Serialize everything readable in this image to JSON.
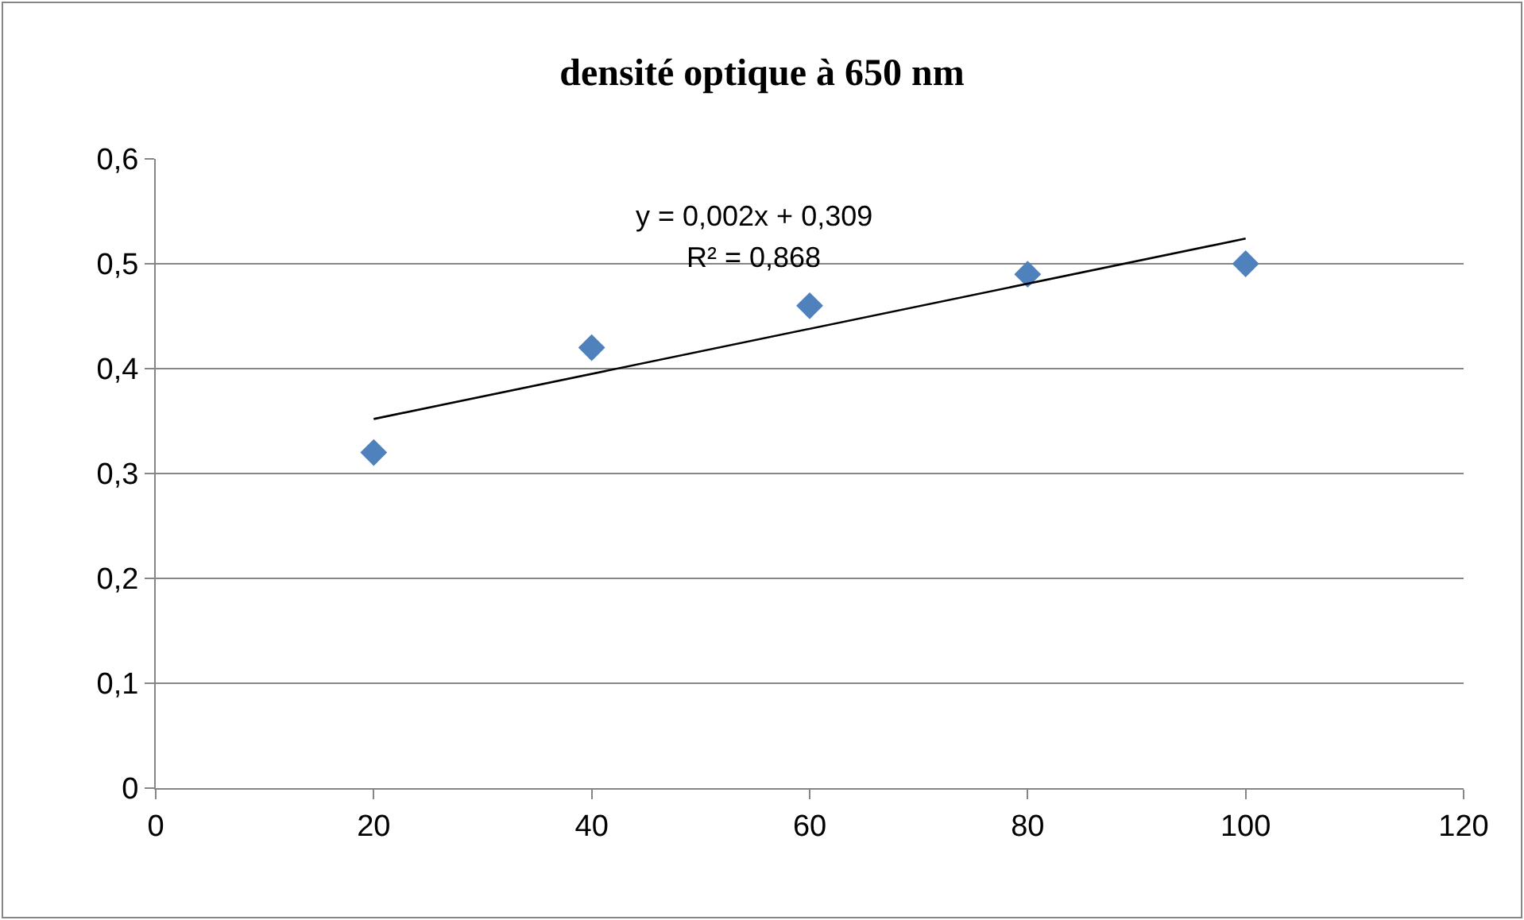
{
  "chart_data": {
    "type": "scatter",
    "title": "densité optique à 650 nm",
    "x": [
      20,
      40,
      60,
      80,
      100
    ],
    "series": [
      {
        "color": "#4f81bd",
        "marker": "diamond",
        "values": [
          0.32,
          0.42,
          0.46,
          0.49,
          0.5
        ]
      },
      {
        "type": "line",
        "color": "#000000",
        "marker": "none",
        "line_style": "solid",
        "x": [
          20,
          100
        ],
        "values": [
          0.352,
          0.524
        ]
      }
    ],
    "xlim": [
      0,
      120
    ],
    "xticks": [
      0,
      20,
      40,
      60,
      80,
      100,
      120
    ],
    "ylim": [
      0,
      0.6
    ],
    "yticks": [
      0,
      {
        "value": 0.1,
        "label": "0,1"
      },
      {
        "value": 0.2,
        "label": "0,2"
      },
      {
        "value": 0.3,
        "label": "0,3"
      },
      {
        "value": 0.4,
        "label": "0,4"
      },
      {
        "value": 0.5,
        "label": "0,5"
      },
      {
        "value": 0.6,
        "label": "0,6"
      }
    ],
    "grid": "y",
    "annotations": [
      "y = 0,002x + 0,309",
      "R² = 0,868"
    ]
  }
}
